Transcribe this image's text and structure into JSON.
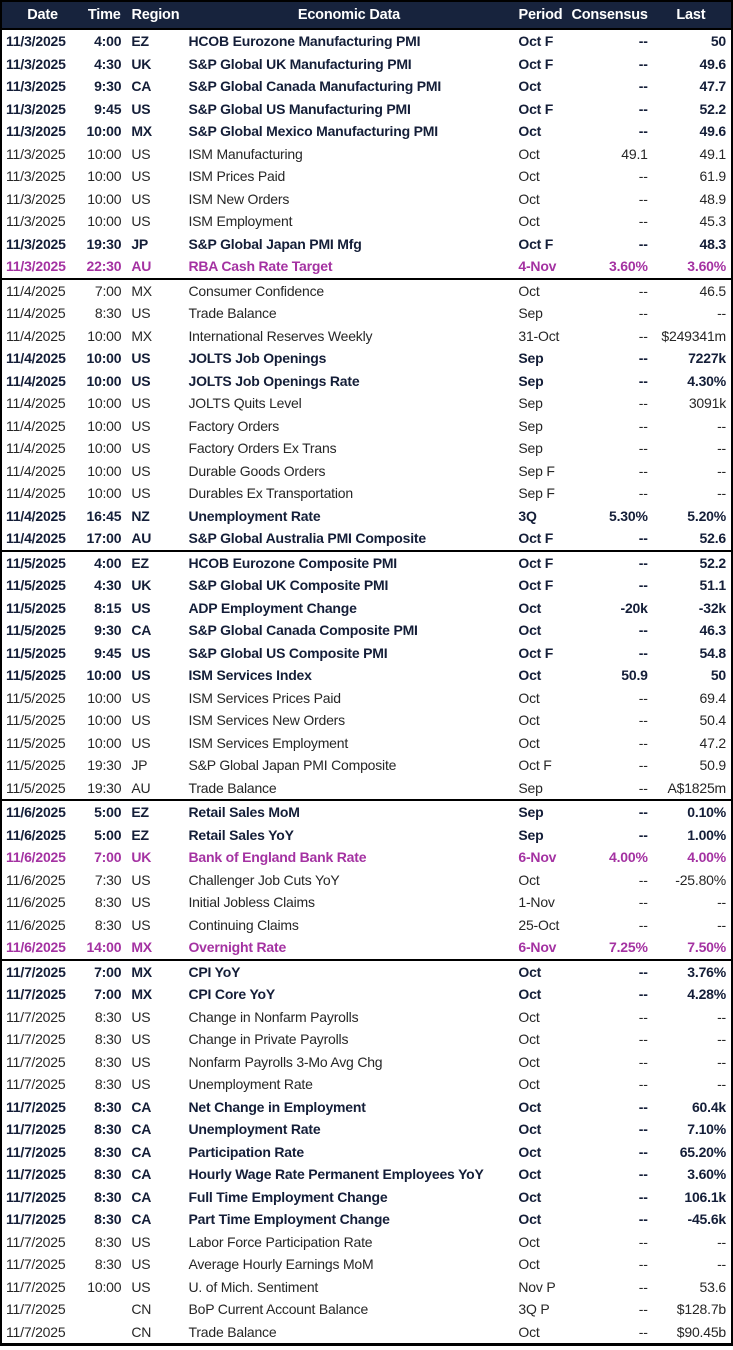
{
  "columns": [
    "Date",
    "Time",
    "Region",
    "Economic Data",
    "Period",
    "Consensus",
    "Last"
  ],
  "colors": {
    "header_bg": "#17233D",
    "header_text": "#FFFFFF",
    "bold_text": "#141E38",
    "regular_text": "#262626",
    "highlight_text": "#A432A2",
    "border": "#000000"
  },
  "groups": [
    {
      "date": "11/3/2025",
      "rows": [
        {
          "time": "4:00",
          "region": "EZ",
          "event": "HCOB Eurozone Manufacturing PMI",
          "period": "Oct F",
          "consensus": "--",
          "last": "50",
          "style": "bold"
        },
        {
          "time": "4:30",
          "region": "UK",
          "event": "S&P Global UK Manufacturing PMI",
          "period": "Oct F",
          "consensus": "--",
          "last": "49.6",
          "style": "bold"
        },
        {
          "time": "9:30",
          "region": "CA",
          "event": "S&P Global Canada Manufacturing PMI",
          "period": "Oct",
          "consensus": "--",
          "last": "47.7",
          "style": "bold"
        },
        {
          "time": "9:45",
          "region": "US",
          "event": "S&P Global US Manufacturing PMI",
          "period": "Oct F",
          "consensus": "--",
          "last": "52.2",
          "style": "bold"
        },
        {
          "time": "10:00",
          "region": "MX",
          "event": "S&P Global Mexico Manufacturing PMI",
          "period": "Oct",
          "consensus": "--",
          "last": "49.6",
          "style": "bold"
        },
        {
          "time": "10:00",
          "region": "US",
          "event": "ISM Manufacturing",
          "period": "Oct",
          "consensus": "49.1",
          "last": "49.1",
          "style": "regular"
        },
        {
          "time": "10:00",
          "region": "US",
          "event": "ISM Prices Paid",
          "period": "Oct",
          "consensus": "--",
          "last": "61.9",
          "style": "regular"
        },
        {
          "time": "10:00",
          "region": "US",
          "event": "ISM New Orders",
          "period": "Oct",
          "consensus": "--",
          "last": "48.9",
          "style": "regular"
        },
        {
          "time": "10:00",
          "region": "US",
          "event": "ISM Employment",
          "period": "Oct",
          "consensus": "--",
          "last": "45.3",
          "style": "regular"
        },
        {
          "time": "19:30",
          "region": "JP",
          "event": "S&P Global Japan PMI Mfg",
          "period": "Oct F",
          "consensus": "--",
          "last": "48.3",
          "style": "bold"
        },
        {
          "time": "22:30",
          "region": "AU",
          "event": "RBA Cash Rate Target",
          "period": "4-Nov",
          "consensus": "3.60%",
          "last": "3.60%",
          "style": "highlight"
        }
      ]
    },
    {
      "date": "11/4/2025",
      "rows": [
        {
          "time": "7:00",
          "region": "MX",
          "event": "Consumer Confidence",
          "period": "Oct",
          "consensus": "--",
          "last": "46.5",
          "style": "regular"
        },
        {
          "time": "8:30",
          "region": "US",
          "event": "Trade Balance",
          "period": "Sep",
          "consensus": "--",
          "last": "--",
          "style": "regular"
        },
        {
          "time": "10:00",
          "region": "MX",
          "event": "International Reserves Weekly",
          "period": "31-Oct",
          "consensus": "--",
          "last": "$249341m",
          "style": "regular"
        },
        {
          "time": "10:00",
          "region": "US",
          "event": "JOLTS Job Openings",
          "period": "Sep",
          "consensus": "--",
          "last": "7227k",
          "style": "bold"
        },
        {
          "time": "10:00",
          "region": "US",
          "event": "JOLTS Job Openings Rate",
          "period": "Sep",
          "consensus": "--",
          "last": "4.30%",
          "style": "bold"
        },
        {
          "time": "10:00",
          "region": "US",
          "event": "JOLTS Quits Level",
          "period": "Sep",
          "consensus": "--",
          "last": "3091k",
          "style": "regular"
        },
        {
          "time": "10:00",
          "region": "US",
          "event": "Factory Orders",
          "period": "Sep",
          "consensus": "--",
          "last": "--",
          "style": "regular"
        },
        {
          "time": "10:00",
          "region": "US",
          "event": "Factory Orders Ex Trans",
          "period": "Sep",
          "consensus": "--",
          "last": "--",
          "style": "regular"
        },
        {
          "time": "10:00",
          "region": "US",
          "event": "Durable Goods Orders",
          "period": "Sep F",
          "consensus": "--",
          "last": "--",
          "style": "regular"
        },
        {
          "time": "10:00",
          "region": "US",
          "event": "Durables Ex Transportation",
          "period": "Sep F",
          "consensus": "--",
          "last": "--",
          "style": "regular"
        },
        {
          "time": "16:45",
          "region": "NZ",
          "event": "Unemployment Rate",
          "period": "3Q",
          "consensus": "5.30%",
          "last": "5.20%",
          "style": "bold"
        },
        {
          "time": "17:00",
          "region": "AU",
          "event": "S&P Global Australia PMI Composite",
          "period": "Oct F",
          "consensus": "--",
          "last": "52.6",
          "style": "bold"
        }
      ]
    },
    {
      "date": "11/5/2025",
      "rows": [
        {
          "time": "4:00",
          "region": "EZ",
          "event": "HCOB Eurozone Composite PMI",
          "period": "Oct F",
          "consensus": "--",
          "last": "52.2",
          "style": "bold"
        },
        {
          "time": "4:30",
          "region": "UK",
          "event": "S&P Global UK Composite PMI",
          "period": "Oct F",
          "consensus": "--",
          "last": "51.1",
          "style": "bold"
        },
        {
          "time": "8:15",
          "region": "US",
          "event": "ADP Employment Change",
          "period": "Oct",
          "consensus": "-20k",
          "last": "-32k",
          "style": "bold"
        },
        {
          "time": "9:30",
          "region": "CA",
          "event": "S&P Global Canada Composite PMI",
          "period": "Oct",
          "consensus": "--",
          "last": "46.3",
          "style": "bold"
        },
        {
          "time": "9:45",
          "region": "US",
          "event": "S&P Global US Composite PMI",
          "period": "Oct F",
          "consensus": "--",
          "last": "54.8",
          "style": "bold"
        },
        {
          "time": "10:00",
          "region": "US",
          "event": "ISM Services Index",
          "period": "Oct",
          "consensus": "50.9",
          "last": "50",
          "style": "bold"
        },
        {
          "time": "10:00",
          "region": "US",
          "event": "ISM Services Prices Paid",
          "period": "Oct",
          "consensus": "--",
          "last": "69.4",
          "style": "regular"
        },
        {
          "time": "10:00",
          "region": "US",
          "event": "ISM Services New Orders",
          "period": "Oct",
          "consensus": "--",
          "last": "50.4",
          "style": "regular"
        },
        {
          "time": "10:00",
          "region": "US",
          "event": "ISM Services Employment",
          "period": "Oct",
          "consensus": "--",
          "last": "47.2",
          "style": "regular"
        },
        {
          "time": "19:30",
          "region": "JP",
          "event": "S&P Global Japan PMI Composite",
          "period": "Oct F",
          "consensus": "--",
          "last": "50.9",
          "style": "regular"
        },
        {
          "time": "19:30",
          "region": "AU",
          "event": "Trade Balance",
          "period": "Sep",
          "consensus": "--",
          "last": "A$1825m",
          "style": "regular"
        }
      ]
    },
    {
      "date": "11/6/2025",
      "rows": [
        {
          "time": "5:00",
          "region": "EZ",
          "event": "Retail Sales MoM",
          "period": "Sep",
          "consensus": "--",
          "last": "0.10%",
          "style": "bold"
        },
        {
          "time": "5:00",
          "region": "EZ",
          "event": "Retail Sales YoY",
          "period": "Sep",
          "consensus": "--",
          "last": "1.00%",
          "style": "bold"
        },
        {
          "time": "7:00",
          "region": "UK",
          "event": "Bank of England Bank Rate",
          "period": "6-Nov",
          "consensus": "4.00%",
          "last": "4.00%",
          "style": "highlight"
        },
        {
          "time": "7:30",
          "region": "US",
          "event": "Challenger Job Cuts YoY",
          "period": "Oct",
          "consensus": "--",
          "last": "-25.80%",
          "style": "regular"
        },
        {
          "time": "8:30",
          "region": "US",
          "event": "Initial Jobless Claims",
          "period": "1-Nov",
          "consensus": "--",
          "last": "--",
          "style": "regular"
        },
        {
          "time": "8:30",
          "region": "US",
          "event": "Continuing Claims",
          "period": "25-Oct",
          "consensus": "--",
          "last": "--",
          "style": "regular"
        },
        {
          "time": "14:00",
          "region": "MX",
          "event": "Overnight Rate",
          "period": "6-Nov",
          "consensus": "7.25%",
          "last": "7.50%",
          "style": "highlight"
        }
      ]
    },
    {
      "date": "11/7/2025",
      "rows": [
        {
          "time": "7:00",
          "region": "MX",
          "event": "CPI YoY",
          "period": "Oct",
          "consensus": "--",
          "last": "3.76%",
          "style": "bold"
        },
        {
          "time": "7:00",
          "region": "MX",
          "event": "CPI Core YoY",
          "period": "Oct",
          "consensus": "--",
          "last": "4.28%",
          "style": "bold"
        },
        {
          "time": "8:30",
          "region": "US",
          "event": "Change in Nonfarm Payrolls",
          "period": "Oct",
          "consensus": "--",
          "last": "--",
          "style": "regular"
        },
        {
          "time": "8:30",
          "region": "US",
          "event": "Change in Private Payrolls",
          "period": "Oct",
          "consensus": "--",
          "last": "--",
          "style": "regular"
        },
        {
          "time": "8:30",
          "region": "US",
          "event": "Nonfarm Payrolls 3-Mo Avg Chg",
          "period": "Oct",
          "consensus": "--",
          "last": "--",
          "style": "regular"
        },
        {
          "time": "8:30",
          "region": "US",
          "event": "Unemployment Rate",
          "period": "Oct",
          "consensus": "--",
          "last": "--",
          "style": "regular"
        },
        {
          "time": "8:30",
          "region": "CA",
          "event": "Net Change in Employment",
          "period": "Oct",
          "consensus": "--",
          "last": "60.4k",
          "style": "bold"
        },
        {
          "time": "8:30",
          "region": "CA",
          "event": "Unemployment Rate",
          "period": "Oct",
          "consensus": "--",
          "last": "7.10%",
          "style": "bold"
        },
        {
          "time": "8:30",
          "region": "CA",
          "event": "Participation Rate",
          "period": "Oct",
          "consensus": "--",
          "last": "65.20%",
          "style": "bold"
        },
        {
          "time": "8:30",
          "region": "CA",
          "event": "Hourly Wage Rate Permanent Employees YoY",
          "period": "Oct",
          "consensus": "--",
          "last": "3.60%",
          "style": "bold"
        },
        {
          "time": "8:30",
          "region": "CA",
          "event": "Full Time Employment Change",
          "period": "Oct",
          "consensus": "--",
          "last": "106.1k",
          "style": "bold"
        },
        {
          "time": "8:30",
          "region": "CA",
          "event": "Part Time Employment Change",
          "period": "Oct",
          "consensus": "--",
          "last": "-45.6k",
          "style": "bold"
        },
        {
          "time": "8:30",
          "region": "US",
          "event": "Labor Force Participation Rate",
          "period": "Oct",
          "consensus": "--",
          "last": "--",
          "style": "regular"
        },
        {
          "time": "8:30",
          "region": "US",
          "event": "Average Hourly Earnings MoM",
          "period": "Oct",
          "consensus": "--",
          "last": "--",
          "style": "regular"
        },
        {
          "time": "10:00",
          "region": "US",
          "event": "U. of Mich. Sentiment",
          "period": "Nov P",
          "consensus": "--",
          "last": "53.6",
          "style": "regular"
        },
        {
          "time": "",
          "region": "CN",
          "event": "BoP Current Account Balance",
          "period": "3Q P",
          "consensus": "--",
          "last": "$128.7b",
          "style": "regular"
        },
        {
          "time": "",
          "region": "CN",
          "event": "Trade Balance",
          "period": "Oct",
          "consensus": "--",
          "last": "$90.45b",
          "style": "regular"
        }
      ]
    }
  ]
}
